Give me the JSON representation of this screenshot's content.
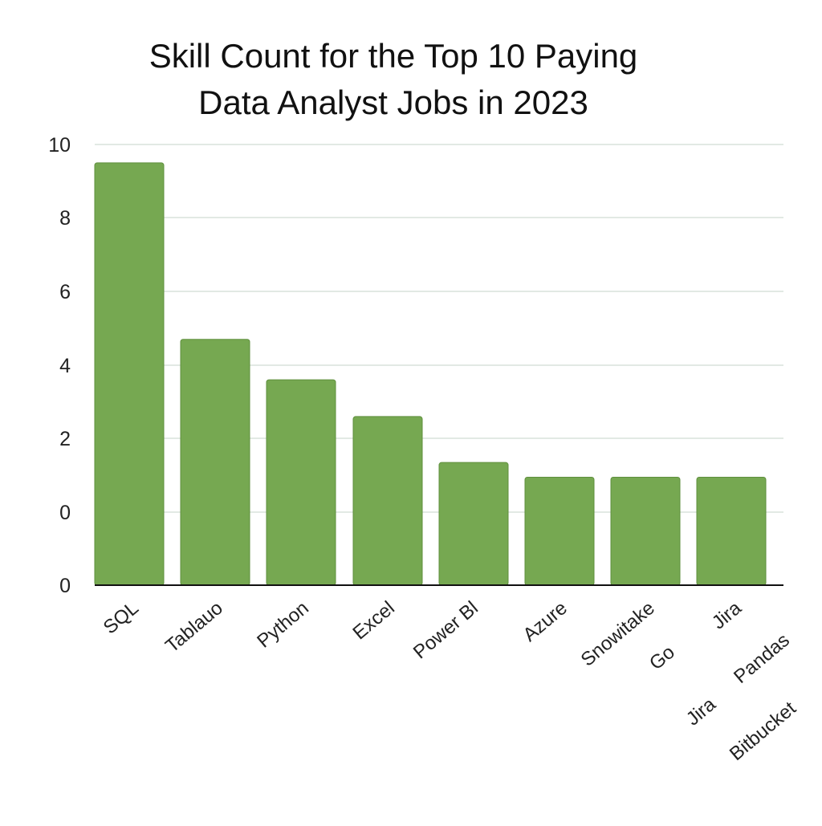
{
  "chart_data": {
    "type": "bar",
    "title_lines": [
      "Skill Count for the Top 10 Paying",
      "Data Analyst Jobs in 2023"
    ],
    "xlabel": "",
    "ylabel": "",
    "y_tick_labels": [
      "0",
      "0",
      "2",
      "4",
      "6",
      "8",
      "10"
    ],
    "categories": [
      "SQL",
      "Tablauo",
      "Python",
      "Excel",
      "Power Bl",
      "Azure",
      "Snowitake",
      "Jira"
    ],
    "values": [
      9.5,
      4.7,
      3.6,
      2.6,
      1.35,
      0.95,
      0.95,
      0.95
    ],
    "extra_x_labels": [
      "Go",
      "Pandas",
      "Jira",
      "Bitbucket"
    ],
    "grid": true,
    "legend": "none",
    "bar_color": "#76a851",
    "bar_edge_color": "#5f8f3d",
    "grid_color": "#d9e2dc",
    "axis_color": "#111111"
  }
}
